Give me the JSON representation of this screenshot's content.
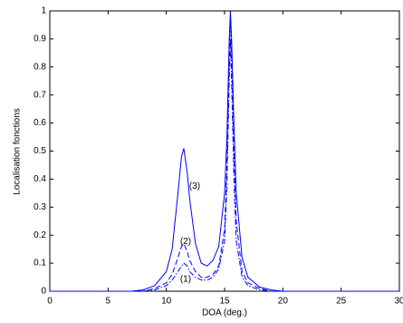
{
  "chart_data": {
    "type": "line",
    "xlabel": "DOA (deg.)",
    "ylabel": "Localisation fonctions",
    "x": [
      0,
      2,
      4,
      6,
      7,
      8,
      9,
      10,
      10.5,
      11,
      11.3,
      11.5,
      11.8,
      12,
      12.5,
      13,
      13.5,
      14,
      14.5,
      15,
      15.2,
      15.4,
      15.5,
      15.6,
      15.8,
      16,
      16.5,
      17,
      18,
      19,
      20,
      22,
      25,
      30
    ],
    "series": [
      {
        "name": "(1)",
        "color": "#0000ff",
        "style": "dashdot",
        "values": [
          0,
          0,
          0,
          0,
          0,
          0,
          0.005,
          0.02,
          0.04,
          0.07,
          0.09,
          0.1,
          0.09,
          0.07,
          0.05,
          0.04,
          0.04,
          0.05,
          0.08,
          0.18,
          0.38,
          0.75,
          0.9,
          0.75,
          0.4,
          0.18,
          0.05,
          0.02,
          0.005,
          0,
          0,
          0,
          0,
          0
        ]
      },
      {
        "name": "(2)",
        "color": "#0000ff",
        "style": "dashed",
        "values": [
          0,
          0,
          0,
          0,
          0,
          0,
          0.01,
          0.03,
          0.06,
          0.12,
          0.16,
          0.17,
          0.14,
          0.11,
          0.07,
          0.05,
          0.05,
          0.06,
          0.09,
          0.22,
          0.45,
          0.85,
          0.97,
          0.85,
          0.5,
          0.25,
          0.07,
          0.03,
          0.01,
          0,
          0,
          0,
          0,
          0
        ]
      },
      {
        "name": "(3)",
        "color": "#0000ff",
        "style": "solid",
        "values": [
          0,
          0,
          0,
          0,
          0,
          0.005,
          0.02,
          0.07,
          0.15,
          0.35,
          0.48,
          0.51,
          0.42,
          0.33,
          0.17,
          0.1,
          0.09,
          0.11,
          0.16,
          0.35,
          0.55,
          0.9,
          1.0,
          0.9,
          0.6,
          0.35,
          0.12,
          0.05,
          0.015,
          0.005,
          0,
          0,
          0,
          0
        ]
      }
    ],
    "xlim": [
      0,
      30
    ],
    "xticks": [
      0,
      5,
      10,
      15,
      20,
      25,
      30
    ],
    "ylim": [
      0,
      1
    ],
    "yticks": [
      0,
      0.1,
      0.2,
      0.3,
      0.4,
      0.5,
      0.6,
      0.7,
      0.8,
      0.9,
      1
    ],
    "grid": false
  }
}
